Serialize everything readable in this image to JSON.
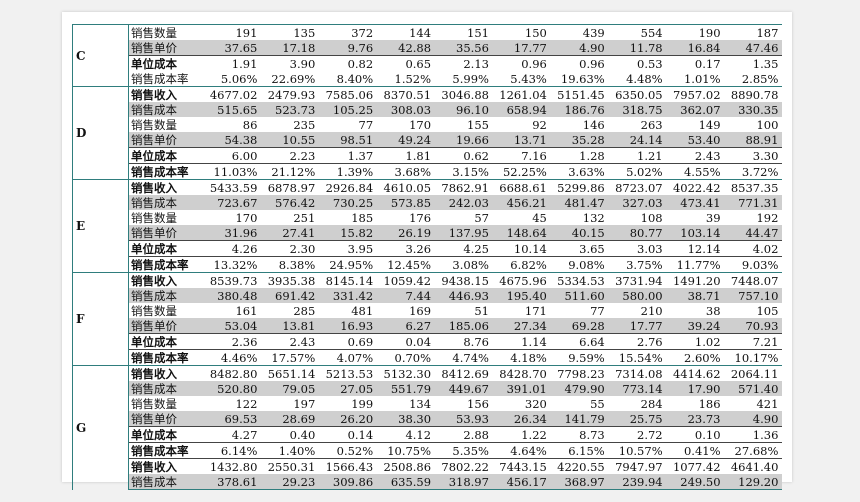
{
  "groups": [
    {
      "code": "C",
      "rows": [
        {
          "label": "销售数量",
          "bold": false,
          "shade": false,
          "values": [
            "191",
            "135",
            "372",
            "144",
            "151",
            "150",
            "439",
            "554",
            "190",
            "187"
          ]
        },
        {
          "label": "销售单价",
          "bold": false,
          "shade": true,
          "values": [
            "37.65",
            "17.18",
            "9.76",
            "42.88",
            "35.56",
            "17.77",
            "4.90",
            "11.78",
            "16.84",
            "47.46"
          ]
        },
        {
          "label": "单位成本",
          "bold": true,
          "shade": false,
          "values": [
            "1.91",
            "3.90",
            "0.82",
            "0.65",
            "2.13",
            "0.96",
            "0.96",
            "0.53",
            "0.17",
            "1.35"
          ]
        },
        {
          "label": "销售成本率",
          "bold": false,
          "shade": false,
          "values": [
            "5.06%",
            "22.69%",
            "8.40%",
            "1.52%",
            "5.99%",
            "5.43%",
            "19.63%",
            "4.48%",
            "1.01%",
            "2.85%"
          ]
        }
      ]
    },
    {
      "code": "D",
      "rows": [
        {
          "label": "销售收入",
          "bold": true,
          "shade": false,
          "values": [
            "4677.02",
            "2479.93",
            "7585.06",
            "8370.51",
            "3046.88",
            "1261.04",
            "5151.45",
            "6350.05",
            "7957.02",
            "8890.78"
          ]
        },
        {
          "label": "销售成本",
          "bold": false,
          "shade": true,
          "values": [
            "515.65",
            "523.73",
            "105.25",
            "308.03",
            "96.10",
            "658.94",
            "186.76",
            "318.75",
            "362.07",
            "330.35"
          ]
        },
        {
          "label": "销售数量",
          "bold": false,
          "shade": false,
          "values": [
            "86",
            "235",
            "77",
            "170",
            "155",
            "92",
            "146",
            "263",
            "149",
            "100"
          ]
        },
        {
          "label": "销售单价",
          "bold": false,
          "shade": true,
          "values": [
            "54.38",
            "10.55",
            "98.51",
            "49.24",
            "19.66",
            "13.71",
            "35.28",
            "24.14",
            "53.40",
            "88.91"
          ]
        },
        {
          "label": "单位成本",
          "bold": true,
          "shade": false,
          "values": [
            "6.00",
            "2.23",
            "1.37",
            "1.81",
            "0.62",
            "7.16",
            "1.28",
            "1.21",
            "2.43",
            "3.30"
          ]
        },
        {
          "label": "销售成本率",
          "bold": true,
          "shade": false,
          "values": [
            "11.03%",
            "21.12%",
            "1.39%",
            "3.68%",
            "3.15%",
            "52.25%",
            "3.63%",
            "5.02%",
            "4.55%",
            "3.72%"
          ]
        }
      ]
    },
    {
      "code": "E",
      "rows": [
        {
          "label": "销售收入",
          "bold": true,
          "shade": false,
          "values": [
            "5433.59",
            "6878.97",
            "2926.84",
            "4610.05",
            "7862.91",
            "6688.61",
            "5299.86",
            "8723.07",
            "4022.42",
            "8537.35"
          ]
        },
        {
          "label": "销售成本",
          "bold": false,
          "shade": true,
          "values": [
            "723.67",
            "576.42",
            "730.25",
            "573.85",
            "242.03",
            "456.21",
            "481.47",
            "327.03",
            "473.41",
            "771.31"
          ]
        },
        {
          "label": "销售数量",
          "bold": false,
          "shade": false,
          "values": [
            "170",
            "251",
            "185",
            "176",
            "57",
            "45",
            "132",
            "108",
            "39",
            "192"
          ]
        },
        {
          "label": "销售单价",
          "bold": false,
          "shade": true,
          "values": [
            "31.96",
            "27.41",
            "15.82",
            "26.19",
            "137.95",
            "148.64",
            "40.15",
            "80.77",
            "103.14",
            "44.47"
          ]
        },
        {
          "label": "单位成本",
          "bold": true,
          "shade": false,
          "values": [
            "4.26",
            "2.30",
            "3.95",
            "3.26",
            "4.25",
            "10.14",
            "3.65",
            "3.03",
            "12.14",
            "4.02"
          ]
        },
        {
          "label": "销售成本率",
          "bold": true,
          "shade": false,
          "values": [
            "13.32%",
            "8.38%",
            "24.95%",
            "12.45%",
            "3.08%",
            "6.82%",
            "9.08%",
            "3.75%",
            "11.77%",
            "9.03%"
          ]
        }
      ]
    },
    {
      "code": "F",
      "rows": [
        {
          "label": "销售收入",
          "bold": true,
          "shade": false,
          "values": [
            "8539.73",
            "3935.38",
            "8145.14",
            "1059.42",
            "9438.15",
            "4675.96",
            "5334.53",
            "3731.94",
            "1491.20",
            "7448.07"
          ]
        },
        {
          "label": "销售成本",
          "bold": false,
          "shade": true,
          "values": [
            "380.48",
            "691.42",
            "331.42",
            "7.44",
            "446.93",
            "195.40",
            "511.60",
            "580.00",
            "38.71",
            "757.10"
          ]
        },
        {
          "label": "销售数量",
          "bold": false,
          "shade": false,
          "values": [
            "161",
            "285",
            "481",
            "169",
            "51",
            "171",
            "77",
            "210",
            "38",
            "105"
          ]
        },
        {
          "label": "销售单价",
          "bold": false,
          "shade": true,
          "values": [
            "53.04",
            "13.81",
            "16.93",
            "6.27",
            "185.06",
            "27.34",
            "69.28",
            "17.77",
            "39.24",
            "70.93"
          ]
        },
        {
          "label": "单位成本",
          "bold": true,
          "shade": false,
          "values": [
            "2.36",
            "2.43",
            "0.69",
            "0.04",
            "8.76",
            "1.14",
            "6.64",
            "2.76",
            "1.02",
            "7.21"
          ]
        },
        {
          "label": "销售成本率",
          "bold": true,
          "shade": false,
          "values": [
            "4.46%",
            "17.57%",
            "4.07%",
            "0.70%",
            "4.74%",
            "4.18%",
            "9.59%",
            "15.54%",
            "2.60%",
            "10.17%"
          ]
        }
      ]
    },
    {
      "code": "G",
      "rows": [
        {
          "label": "销售收入",
          "bold": true,
          "shade": false,
          "values": [
            "8482.80",
            "5651.14",
            "5213.53",
            "5132.30",
            "8412.69",
            "8428.70",
            "7798.23",
            "7314.08",
            "4414.62",
            "2064.11"
          ]
        },
        {
          "label": "销售成本",
          "bold": false,
          "shade": true,
          "values": [
            "520.80",
            "79.05",
            "27.05",
            "551.79",
            "449.67",
            "391.01",
            "479.90",
            "773.14",
            "17.90",
            "571.40"
          ]
        },
        {
          "label": "销售数量",
          "bold": false,
          "shade": false,
          "values": [
            "122",
            "197",
            "199",
            "134",
            "156",
            "320",
            "55",
            "284",
            "186",
            "421"
          ]
        },
        {
          "label": "销售单价",
          "bold": false,
          "shade": true,
          "values": [
            "69.53",
            "28.69",
            "26.20",
            "38.30",
            "53.93",
            "26.34",
            "141.79",
            "25.75",
            "23.73",
            "4.90"
          ]
        },
        {
          "label": "单位成本",
          "bold": true,
          "shade": false,
          "values": [
            "4.27",
            "0.40",
            "0.14",
            "4.12",
            "2.88",
            "1.22",
            "8.73",
            "2.72",
            "0.10",
            "1.36"
          ]
        },
        {
          "label": "销售成本率",
          "bold": true,
          "shade": false,
          "values": [
            "6.14%",
            "1.40%",
            "0.52%",
            "10.75%",
            "5.35%",
            "4.64%",
            "6.15%",
            "10.57%",
            "0.41%",
            "27.68%"
          ]
        },
        {
          "label": "销售收入",
          "bold": true,
          "shade": false,
          "values": [
            "1432.80",
            "2550.31",
            "1566.43",
            "2508.86",
            "7802.22",
            "7443.15",
            "4220.55",
            "7947.97",
            "1077.42",
            "4641.40"
          ]
        },
        {
          "label": "销售成本",
          "bold": false,
          "shade": true,
          "values": [
            "378.61",
            "29.23",
            "309.86",
            "635.59",
            "318.97",
            "456.17",
            "368.97",
            "239.94",
            "249.50",
            "129.20"
          ]
        }
      ]
    }
  ]
}
